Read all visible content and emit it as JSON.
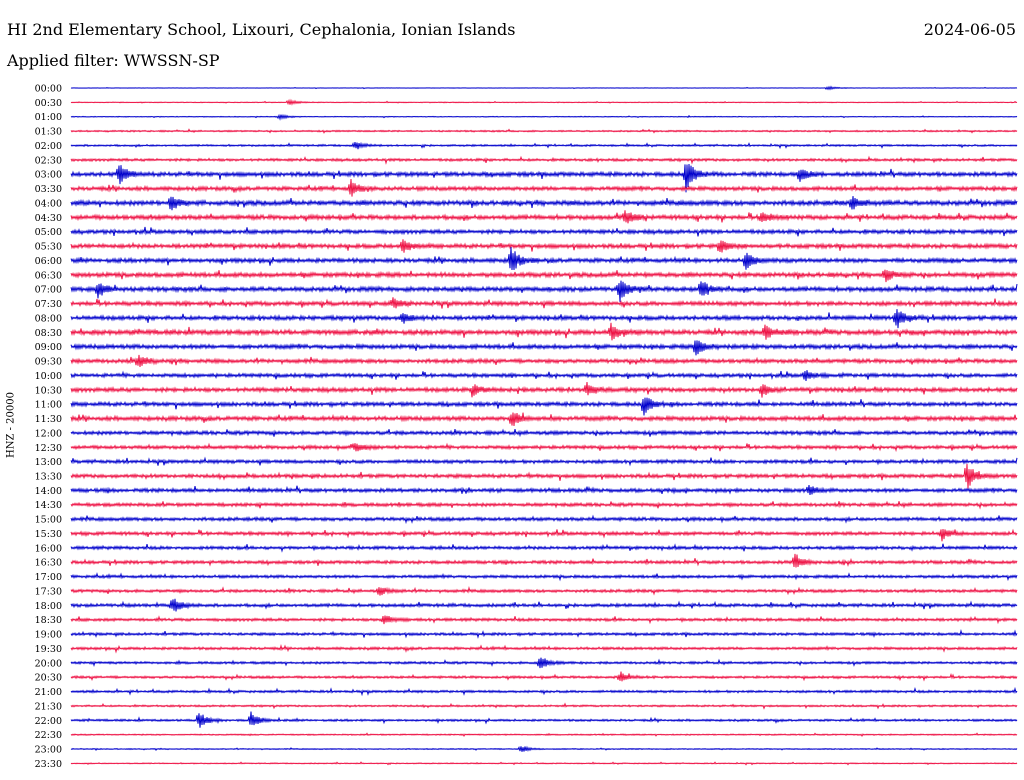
{
  "header": {
    "station": "HI 2nd Elementary School, Lixouri, Cephalonia, Ionian Islands",
    "date": "2024-06-05",
    "filter": "Applied filter: WWSSN-SP",
    "channel": "HNZ - 20000"
  },
  "chart_data": {
    "type": "line",
    "title": "HI 2nd Elementary School, Lixouri, Cephalonia, Ionian Islands",
    "ylabel": "HNZ - 20000",
    "row_labels": [
      "00:00",
      "00:30",
      "01:00",
      "01:30",
      "02:00",
      "02:30",
      "03:00",
      "03:30",
      "04:00",
      "04:30",
      "05:00",
      "05:30",
      "06:00",
      "06:30",
      "07:00",
      "07:30",
      "08:00",
      "08:30",
      "09:00",
      "09:30",
      "10:00",
      "10:30",
      "11:00",
      "11:30",
      "12:00",
      "12:30",
      "13:00",
      "13:30",
      "14:00",
      "14:30",
      "15:00",
      "15:30",
      "16:00",
      "16:30",
      "17:00",
      "17:30",
      "18:00",
      "18:30",
      "19:00",
      "19:30",
      "20:00",
      "20:30",
      "21:00",
      "21:30",
      "22:00",
      "22:30",
      "23:00",
      "23:30"
    ],
    "trace_colors": [
      "#0000cc",
      "#ee1144"
    ],
    "noise_levels": [
      0.2,
      0.3,
      0.3,
      0.6,
      0.7,
      1.0,
      1.6,
      1.5,
      1.8,
      1.7,
      1.5,
      1.6,
      1.6,
      1.7,
      1.7,
      1.6,
      1.6,
      1.8,
      1.6,
      1.5,
      1.4,
      1.6,
      1.5,
      1.6,
      1.4,
      1.3,
      1.3,
      1.4,
      1.4,
      1.3,
      1.3,
      1.3,
      1.2,
      1.2,
      1.1,
      1.1,
      1.2,
      1.1,
      1.0,
      1.0,
      0.9,
      0.9,
      0.9,
      0.7,
      0.8,
      0.5,
      0.4,
      0.4
    ],
    "events": [
      {
        "row": 0,
        "fraction": 0.8,
        "amplitude": 2
      },
      {
        "row": 1,
        "fraction": 0.23,
        "amplitude": 3
      },
      {
        "row": 2,
        "fraction": 0.22,
        "amplitude": 3
      },
      {
        "row": 4,
        "fraction": 0.3,
        "amplitude": 4
      },
      {
        "row": 6,
        "fraction": 0.05,
        "amplitude": 12
      },
      {
        "row": 6,
        "fraction": 0.65,
        "amplitude": 18
      },
      {
        "row": 6,
        "fraction": 0.77,
        "amplitude": 8
      },
      {
        "row": 7,
        "fraction": 0.295,
        "amplitude": 10
      },
      {
        "row": 8,
        "fraction": 0.105,
        "amplitude": 9
      },
      {
        "row": 8,
        "fraction": 0.825,
        "amplitude": 8
      },
      {
        "row": 9,
        "fraction": 0.585,
        "amplitude": 7
      },
      {
        "row": 9,
        "fraction": 0.73,
        "amplitude": 6
      },
      {
        "row": 11,
        "fraction": 0.35,
        "amplitude": 8
      },
      {
        "row": 11,
        "fraction": 0.685,
        "amplitude": 8
      },
      {
        "row": 12,
        "fraction": 0.465,
        "amplitude": 14
      },
      {
        "row": 12,
        "fraction": 0.713,
        "amplitude": 9
      },
      {
        "row": 13,
        "fraction": 0.86,
        "amplitude": 7
      },
      {
        "row": 14,
        "fraction": 0.028,
        "amplitude": 9
      },
      {
        "row": 14,
        "fraction": 0.58,
        "amplitude": 12
      },
      {
        "row": 14,
        "fraction": 0.665,
        "amplitude": 10
      },
      {
        "row": 15,
        "fraction": 0.34,
        "amplitude": 6
      },
      {
        "row": 16,
        "fraction": 0.35,
        "amplitude": 6
      },
      {
        "row": 16,
        "fraction": 0.872,
        "amplitude": 12
      },
      {
        "row": 17,
        "fraction": 0.57,
        "amplitude": 9
      },
      {
        "row": 17,
        "fraction": 0.733,
        "amplitude": 8
      },
      {
        "row": 18,
        "fraction": 0.66,
        "amplitude": 11
      },
      {
        "row": 19,
        "fraction": 0.07,
        "amplitude": 8
      },
      {
        "row": 20,
        "fraction": 0.775,
        "amplitude": 6
      },
      {
        "row": 21,
        "fraction": 0.425,
        "amplitude": 6
      },
      {
        "row": 21,
        "fraction": 0.545,
        "amplitude": 7
      },
      {
        "row": 21,
        "fraction": 0.73,
        "amplitude": 7
      },
      {
        "row": 22,
        "fraction": 0.605,
        "amplitude": 12
      },
      {
        "row": 23,
        "fraction": 0.466,
        "amplitude": 9
      },
      {
        "row": 25,
        "fraction": 0.3,
        "amplitude": 5
      },
      {
        "row": 27,
        "fraction": 0.947,
        "amplitude": 14
      },
      {
        "row": 28,
        "fraction": 0.78,
        "amplitude": 5
      },
      {
        "row": 31,
        "fraction": 0.92,
        "amplitude": 8
      },
      {
        "row": 33,
        "fraction": 0.765,
        "amplitude": 9
      },
      {
        "row": 35,
        "fraction": 0.325,
        "amplitude": 5
      },
      {
        "row": 36,
        "fraction": 0.107,
        "amplitude": 9
      },
      {
        "row": 37,
        "fraction": 0.33,
        "amplitude": 6
      },
      {
        "row": 40,
        "fraction": 0.495,
        "amplitude": 8
      },
      {
        "row": 41,
        "fraction": 0.58,
        "amplitude": 6
      },
      {
        "row": 44,
        "fraction": 0.135,
        "amplitude": 9
      },
      {
        "row": 44,
        "fraction": 0.19,
        "amplitude": 9
      },
      {
        "row": 46,
        "fraction": 0.475,
        "amplitude": 4
      }
    ]
  }
}
